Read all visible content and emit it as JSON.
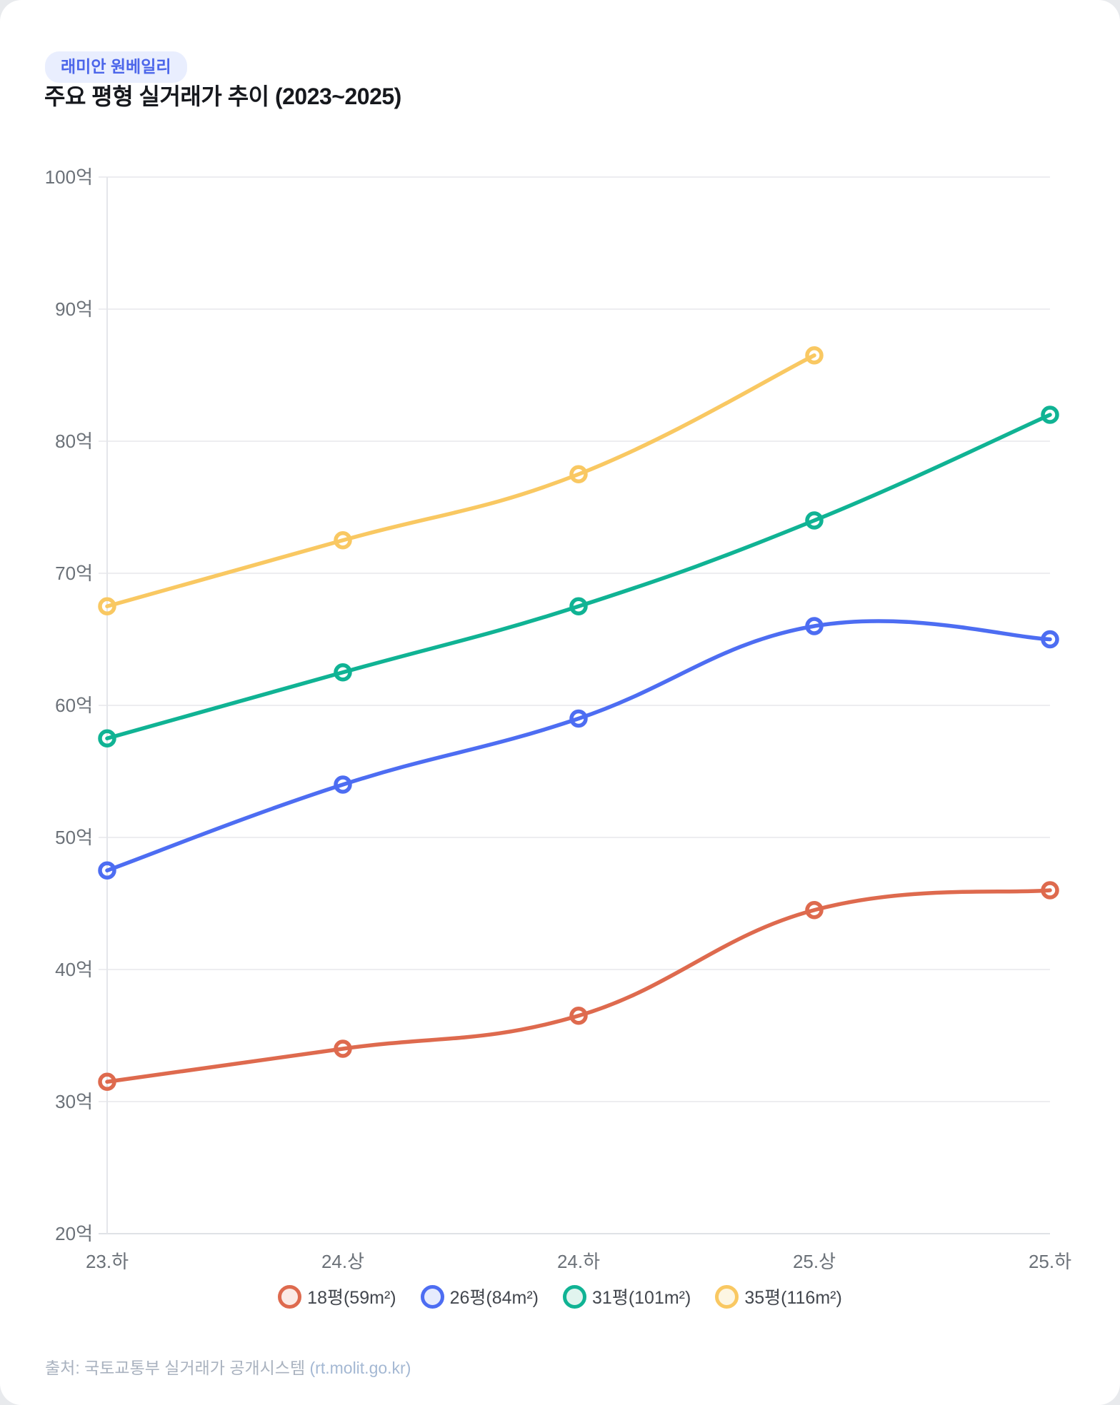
{
  "page": {
    "background": "#e8eaed",
    "card_background": "#ffffff"
  },
  "badge": {
    "label": "래미안 원베일리",
    "text_color": "#4c66ea",
    "bg_color": "#e9eefe"
  },
  "title": "주요 평형 실거래가 추이 (2023~2025)",
  "footer": {
    "prefix": "출처: 국토교통부 실거래가 공개시스템 ",
    "link": "(rt.molit.go.kr)"
  },
  "chart_data": {
    "type": "line",
    "title": "주요 평형 실거래가 추이 (2023~2025)",
    "categories": [
      "23.하",
      "24.상",
      "24.하",
      "25.상",
      "25.하"
    ],
    "unit": "억",
    "y_axis": {
      "min": 20,
      "max": 100,
      "step": 10,
      "tick_suffix": "억"
    },
    "grid": true,
    "legend_position": "bottom",
    "curve_tension": 0.4,
    "series": [
      {
        "name": "18평(59m²)",
        "color": "#DE6A4E",
        "tint": "#fbeae5",
        "values": [
          31.5,
          34,
          36.5,
          44.5,
          46
        ]
      },
      {
        "name": "26평(84m²)",
        "color": "#4D6DF2",
        "tint": "#e6ebfd",
        "values": [
          47.5,
          54,
          59,
          66,
          65
        ]
      },
      {
        "name": "31평(101m²)",
        "color": "#10B394",
        "tint": "#e1f4ee",
        "values": [
          57.5,
          62.5,
          67.5,
          74,
          82
        ]
      },
      {
        "name": "35평(116m²)",
        "color": "#F9C862",
        "tint": "#fdf6e3",
        "values": [
          67.5,
          72.5,
          77.5,
          86.5,
          null
        ]
      }
    ],
    "style": {
      "grid_color": "#ededf0",
      "axis_color": "#dfe2e6",
      "y_axis_line_color": "#e4e6ea",
      "tick_label_color": "#6b7178",
      "line_width": 5.5,
      "point_radius": 10
    }
  }
}
